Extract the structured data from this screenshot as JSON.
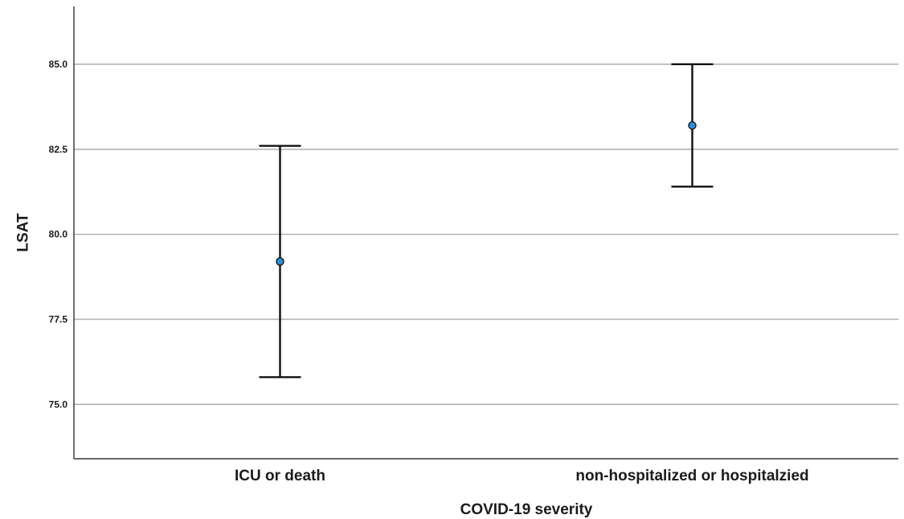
{
  "chart_data": {
    "type": "errorbar",
    "xlabel": "COVID-19 severity",
    "ylabel": "LSAT",
    "categories": [
      "ICU or death",
      "non-hospitalized or hospitalzied"
    ],
    "mean": [
      79.2,
      83.2
    ],
    "lower": [
      75.8,
      81.4
    ],
    "upper": [
      82.6,
      85.0
    ],
    "ylim": [
      73.4,
      86.7
    ],
    "yticks": [
      75.0,
      77.5,
      80.0,
      82.5,
      85.0
    ],
    "ytick_labels": [
      "75.0",
      "77.5",
      "80.0",
      "82.5",
      "85.0"
    ],
    "grid": true,
    "colors": {
      "marker": "#2e8fd6",
      "marker_edge": "#111111",
      "error_bar": "#111111",
      "grid": "#b3b3b3",
      "axis": "#111111"
    }
  }
}
